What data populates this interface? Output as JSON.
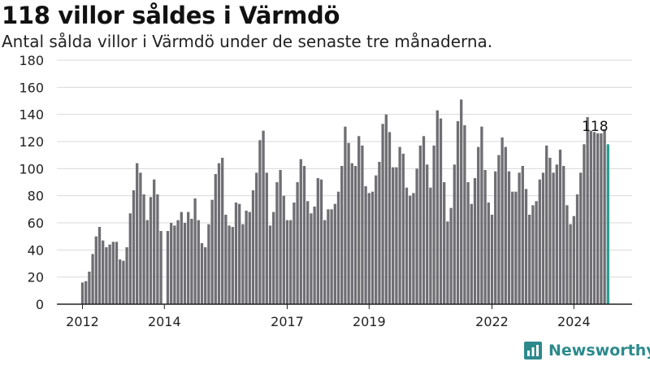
{
  "title": "118 villor såldes i Värmdö",
  "subtitle": "Antal sålda villor i Värmdö under de senaste tre månaderna.",
  "brand": "Newsworthy",
  "colors": {
    "bar": "#6e6e73",
    "highlight": "#2a9d8f",
    "grid": "#d9d9d9",
    "brand": "#2d8a8c"
  },
  "chart_data": {
    "type": "bar",
    "title": "118 villor såldes i Värmdö",
    "subtitle": "Antal sålda villor i Värmdö under de senaste tre månaderna.",
    "xlabel": "",
    "ylabel": "",
    "ylim": [
      0,
      180
    ],
    "yticks": [
      0,
      20,
      40,
      60,
      80,
      100,
      120,
      140,
      160,
      180
    ],
    "xtick_labels": [
      "2012",
      "2014",
      "2017",
      "2019",
      "2022",
      "2024"
    ],
    "grid": true,
    "highlight_label": "118",
    "values": [
      16,
      17,
      24,
      37,
      50,
      57,
      47,
      42,
      44,
      46,
      46,
      33,
      32,
      42,
      67,
      84,
      104,
      97,
      81,
      62,
      79,
      92,
      81,
      54,
      0,
      54,
      60,
      58,
      62,
      68,
      60,
      68,
      63,
      78,
      62,
      45,
      42,
      59,
      77,
      96,
      104,
      108,
      66,
      58,
      57,
      75,
      74,
      59,
      69,
      68,
      84,
      97,
      121,
      128,
      97,
      58,
      68,
      90,
      99,
      80,
      62,
      62,
      75,
      90,
      107,
      102,
      76,
      67,
      72,
      93,
      92,
      62,
      70,
      70,
      74,
      83,
      102,
      131,
      119,
      104,
      102,
      124,
      117,
      87,
      82,
      83,
      95,
      105,
      133,
      140,
      127,
      101,
      101,
      116,
      111,
      86,
      80,
      82,
      100,
      117,
      124,
      103,
      86,
      117,
      143,
      137,
      90,
      61,
      71,
      103,
      135,
      151,
      132,
      90,
      74,
      93,
      116,
      131,
      99,
      75,
      66,
      98,
      110,
      123,
      116,
      98,
      83,
      83,
      97,
      102,
      85,
      66,
      73,
      76,
      92,
      97,
      117,
      108,
      97,
      103,
      114,
      102,
      73,
      59,
      65,
      81,
      97,
      118,
      138,
      128,
      127,
      126,
      126,
      129,
      118
    ]
  }
}
